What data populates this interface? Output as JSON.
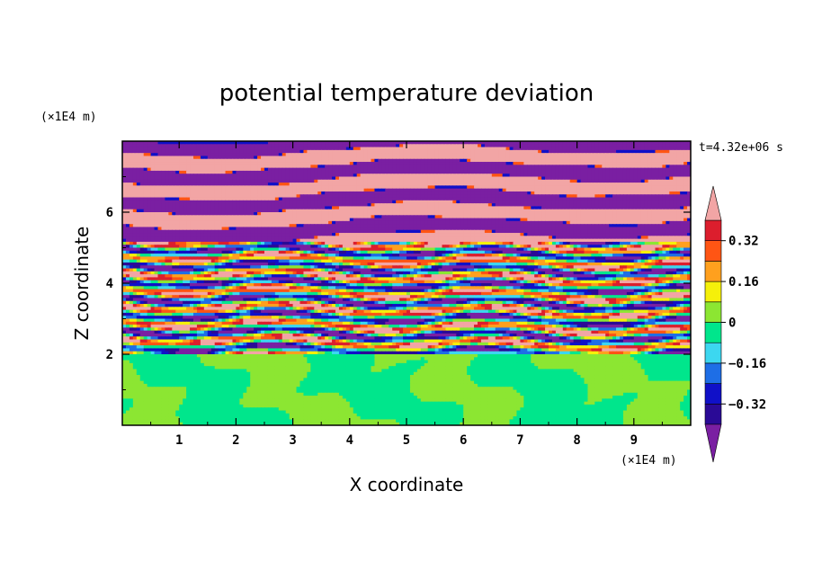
{
  "chart_data": {
    "type": "heatmap",
    "title": "potential temperature deviation",
    "xlabel": "X coordinate",
    "ylabel": "Z coordinate",
    "x_unit": "(×1E4 m)",
    "y_unit": "(×1E4 m)",
    "time_label": "t=4.32e+06 s",
    "xlim": [
      0,
      10
    ],
    "ylim": [
      0,
      8
    ],
    "x_ticks": [
      1,
      2,
      3,
      4,
      5,
      6,
      7,
      8,
      9
    ],
    "y_ticks": [
      2,
      4,
      6
    ],
    "colorbar": {
      "levels": [
        -0.4,
        -0.32,
        -0.24,
        -0.16,
        -0.08,
        0,
        0.08,
        0.16,
        0.24,
        0.32,
        0.4
      ],
      "tick_labels": [
        "-0.32",
        "-0.16",
        "0",
        "0.16",
        "0.32"
      ],
      "tick_values": [
        -0.32,
        -0.16,
        0,
        0.16,
        0.32
      ],
      "colors": [
        "#7a1fa2",
        "#2a0a96",
        "#1010c8",
        "#1e6ee6",
        "#3cd7f0",
        "#00e68c",
        "#8ce632",
        "#f5f00a",
        "#ffa01e",
        "#ff5514",
        "#dc1e2d",
        "#f2a5a5"
      ]
    },
    "regions": [
      {
        "z_range": [
          0,
          2
        ],
        "description_values": [
          0.0,
          0.08
        ]
      },
      {
        "z_range": [
          2,
          5.2
        ],
        "description_values": [
          -0.4,
          0.4
        ]
      },
      {
        "z_range": [
          5.2,
          8
        ],
        "description_values": [
          -0.4,
          0.4
        ]
      }
    ]
  }
}
